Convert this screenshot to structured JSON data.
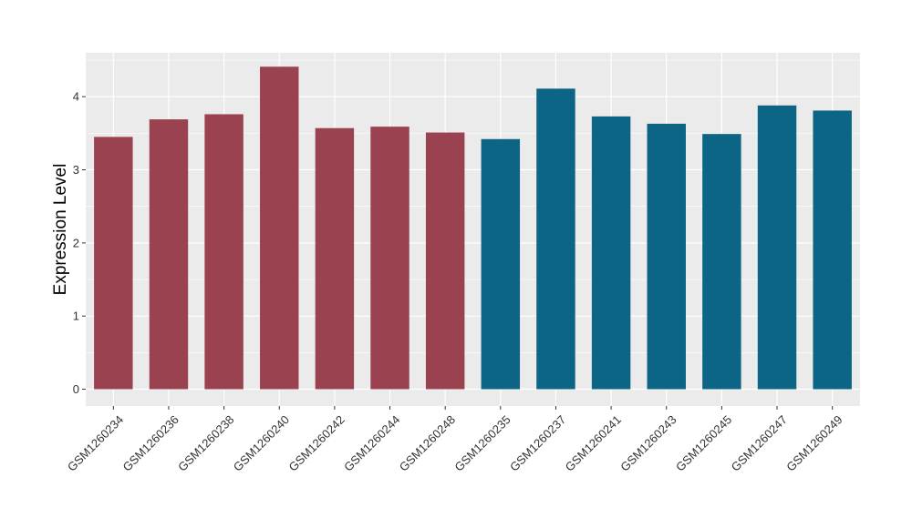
{
  "chart_data": {
    "type": "bar",
    "title": "",
    "xlabel": "",
    "ylabel": "Expression Level",
    "ylim": [
      -0.23,
      4.6
    ],
    "yticks": [
      0,
      1,
      2,
      3,
      4
    ],
    "grid": true,
    "legend": "none",
    "colors": {
      "group1": "#9b4250",
      "group2": "#0d6586",
      "panel": "#ebebeb",
      "gridline": "#ffffff"
    },
    "categories": [
      "GSM1260234",
      "GSM1260236",
      "GSM1260238",
      "GSM1260240",
      "GSM1260242",
      "GSM1260244",
      "GSM1260248",
      "GSM1260235",
      "GSM1260237",
      "GSM1260241",
      "GSM1260243",
      "GSM1260245",
      "GSM1260247",
      "GSM1260249"
    ],
    "values": [
      3.45,
      3.69,
      3.76,
      4.41,
      3.57,
      3.59,
      3.51,
      3.42,
      4.11,
      3.73,
      3.63,
      3.49,
      3.88,
      3.81
    ],
    "bar_groups": [
      1,
      1,
      1,
      1,
      1,
      1,
      1,
      2,
      2,
      2,
      2,
      2,
      2,
      2
    ]
  }
}
